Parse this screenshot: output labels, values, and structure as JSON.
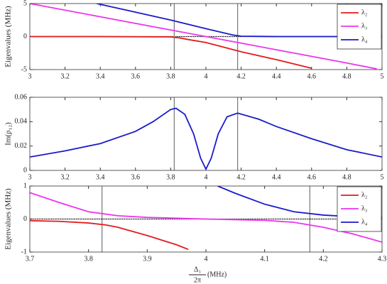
{
  "chart_data": [
    {
      "type": "line",
      "ylabel": "Eigenvalues (MHz)",
      "xlim": [
        3,
        5
      ],
      "xticks": [
        3,
        3.2,
        3.4,
        3.6,
        3.8,
        4,
        4.2,
        4.4,
        4.6,
        4.8,
        5
      ],
      "ylim": [
        -5,
        5
      ],
      "yticks": [
        -5,
        0,
        5
      ],
      "vlines": [
        3.82,
        4.18
      ],
      "hline": 0,
      "legend": "upper right",
      "series": [
        {
          "name": "λ₂",
          "color": "#e41a1c",
          "x": [
            3,
            3.4,
            3.8,
            3.85,
            3.9,
            4.0,
            4.2,
            4.4,
            4.6
          ],
          "values": [
            0,
            0,
            -0.05,
            -0.2,
            -0.45,
            -0.9,
            -2.3,
            -3.5,
            -4.8
          ]
        },
        {
          "name": "λ₃",
          "color": "#ee33ee",
          "x": [
            3,
            3.4,
            3.8,
            4.0,
            4.2,
            4.4,
            4.6,
            4.8,
            4.97
          ],
          "values": [
            5,
            3,
            1,
            0,
            -1,
            -2,
            -3,
            -4,
            -4.9
          ]
        },
        {
          "name": "λ₄",
          "color": "#1a1acc",
          "x": [
            3.38,
            3.6,
            3.8,
            4.0,
            4.15,
            4.2,
            4.4,
            4.6,
            4.8,
            5
          ],
          "values": [
            5,
            3.7,
            2.5,
            1.2,
            0.25,
            0.05,
            0,
            0,
            0,
            0
          ]
        }
      ]
    },
    {
      "type": "line",
      "ylabel": "Im(ρ₁₂)",
      "xlim": [
        3,
        5
      ],
      "xticks": [
        3,
        3.2,
        3.4,
        3.6,
        3.8,
        4,
        4.2,
        4.4,
        4.6,
        4.8,
        5
      ],
      "ylim": [
        0,
        0.06
      ],
      "yticks": [
        0,
        0.02,
        0.04,
        0.06
      ],
      "vlines": [
        3.82,
        4.18
      ],
      "series": [
        {
          "color": "#1a1acc",
          "x": [
            3,
            3.2,
            3.4,
            3.6,
            3.7,
            3.8,
            3.83,
            3.88,
            3.93,
            3.97,
            4.0,
            4.03,
            4.07,
            4.12,
            4.18,
            4.3,
            4.4,
            4.6,
            4.8,
            5
          ],
          "values": [
            0.011,
            0.016,
            0.022,
            0.032,
            0.04,
            0.05,
            0.051,
            0.046,
            0.03,
            0.01,
            0.001,
            0.01,
            0.03,
            0.044,
            0.047,
            0.042,
            0.036,
            0.026,
            0.017,
            0.011
          ]
        }
      ]
    },
    {
      "type": "line",
      "ylabel": "Eigenvalues (MHz)",
      "xlabel": {
        "numerator": "Δ₁",
        "denominator": "2π",
        "unit": "(MHz)"
      },
      "xlim": [
        3.7,
        4.3
      ],
      "xticks": [
        3.7,
        3.8,
        3.9,
        4,
        4.1,
        4.2,
        4.3
      ],
      "ylim": [
        -1,
        1
      ],
      "yticks": [
        -1,
        0,
        1
      ],
      "vlines": [
        3.823,
        4.177
      ],
      "hline": 0,
      "legend": "upper right",
      "series": [
        {
          "name": "λ₂",
          "color": "#e41a1c",
          "x": [
            3.7,
            3.75,
            3.8,
            3.83,
            3.85,
            3.9,
            3.95,
            3.97
          ],
          "values": [
            -0.05,
            -0.07,
            -0.12,
            -0.18,
            -0.25,
            -0.5,
            -0.78,
            -0.92
          ]
        },
        {
          "name": "λ₃",
          "color": "#ee33ee",
          "x": [
            3.7,
            3.75,
            3.8,
            3.85,
            3.9,
            4.0,
            4.1,
            4.15,
            4.2,
            4.25,
            4.3
          ],
          "values": [
            0.8,
            0.5,
            0.22,
            0.1,
            0.05,
            0,
            -0.04,
            -0.1,
            -0.25,
            -0.45,
            -0.7
          ]
        },
        {
          "name": "λ₄",
          "color": "#1a1acc",
          "x": [
            4.02,
            4.05,
            4.1,
            4.15,
            4.2,
            4.25,
            4.3
          ],
          "values": [
            1,
            0.78,
            0.45,
            0.22,
            0.12,
            0.07,
            0.05
          ]
        }
      ]
    }
  ]
}
